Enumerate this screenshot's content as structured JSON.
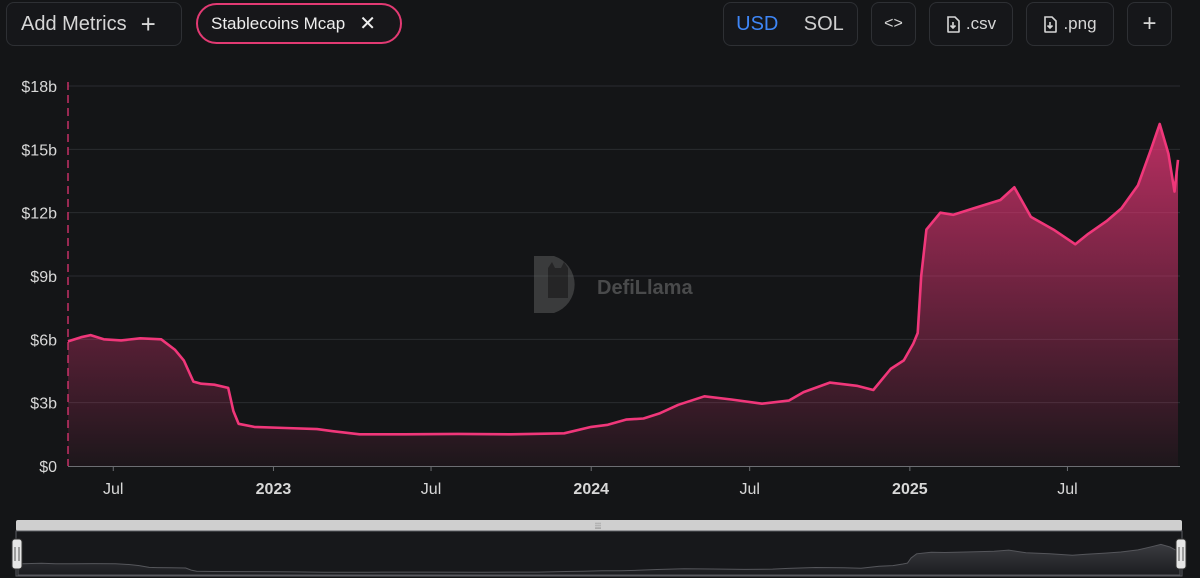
{
  "toolbar": {
    "add_metrics_label": "Add Metrics",
    "metric_chip_label": "Stablecoins Mcap",
    "currency_options": [
      "USD",
      "SOL"
    ],
    "currency_selected": "USD",
    "embed_label": "<>",
    "csv_label": ".csv",
    "png_label": ".png"
  },
  "watermark": {
    "text": "DefiLlama"
  },
  "colors": {
    "accent": "#f0377a",
    "active_currency": "#3e86f6",
    "background": "#141517"
  },
  "chart_data": {
    "type": "area",
    "title": "",
    "xlabel": "",
    "ylabel": "",
    "ylim": [
      0,
      18
    ],
    "y_unit": "b",
    "y_ticks": [
      "$0",
      "$3b",
      "$6b",
      "$9b",
      "$12b",
      "$15b",
      "$18b"
    ],
    "x_ticks": [
      {
        "label": "Jul",
        "bold": false,
        "date": "2022-07-01"
      },
      {
        "label": "2023",
        "bold": true,
        "date": "2023-01-01"
      },
      {
        "label": "Jul",
        "bold": false,
        "date": "2023-07-01"
      },
      {
        "label": "2024",
        "bold": true,
        "date": "2024-01-01"
      },
      {
        "label": "Jul",
        "bold": false,
        "date": "2024-07-01"
      },
      {
        "label": "2025",
        "bold": true,
        "date": "2025-01-01"
      },
      {
        "label": "Jul",
        "bold": false,
        "date": "2025-07-01"
      }
    ],
    "grid": true,
    "legend": "none",
    "series": [
      {
        "color": "#f0377a",
        "x": [
          "2022-05-10",
          "2022-05-25",
          "2022-06-05",
          "2022-06-20",
          "2022-07-10",
          "2022-08-01",
          "2022-08-25",
          "2022-09-10",
          "2022-09-20",
          "2022-10-01",
          "2022-10-10",
          "2022-10-25",
          "2022-11-10",
          "2022-11-16",
          "2022-11-22",
          "2022-12-10",
          "2023-01-15",
          "2023-02-20",
          "2023-03-10",
          "2023-04-10",
          "2023-06-01",
          "2023-08-01",
          "2023-10-01",
          "2023-12-01",
          "2024-01-01",
          "2024-01-20",
          "2024-02-10",
          "2024-03-01",
          "2024-03-20",
          "2024-04-10",
          "2024-05-10",
          "2024-06-10",
          "2024-07-15",
          "2024-08-15",
          "2024-09-01",
          "2024-10-01",
          "2024-11-01",
          "2024-11-20",
          "2024-12-10",
          "2024-12-25",
          "2025-01-05",
          "2025-01-10",
          "2025-01-14",
          "2025-01-20",
          "2025-02-05",
          "2025-02-20",
          "2025-03-15",
          "2025-04-15",
          "2025-05-01",
          "2025-05-20",
          "2025-06-15",
          "2025-07-10",
          "2025-07-25",
          "2025-08-15",
          "2025-09-01",
          "2025-09-20",
          "2025-10-05",
          "2025-10-15",
          "2025-10-25",
          "2025-11-01",
          "2025-11-05"
        ],
        "values": [
          5.9,
          6.1,
          6.2,
          6.0,
          5.95,
          6.05,
          6.0,
          5.5,
          5.0,
          4.0,
          3.9,
          3.85,
          3.7,
          2.6,
          2.0,
          1.85,
          1.8,
          1.75,
          1.65,
          1.5,
          1.5,
          1.52,
          1.5,
          1.55,
          1.85,
          1.95,
          2.2,
          2.25,
          2.5,
          2.9,
          3.3,
          3.15,
          2.95,
          3.1,
          3.5,
          3.95,
          3.8,
          3.6,
          4.6,
          5.0,
          5.8,
          6.3,
          9.0,
          11.2,
          12.0,
          11.9,
          12.2,
          12.6,
          13.2,
          11.8,
          11.2,
          10.5,
          11.0,
          11.6,
          12.2,
          13.3,
          15.0,
          16.2,
          14.8,
          13.0,
          14.5
        ]
      }
    ]
  }
}
